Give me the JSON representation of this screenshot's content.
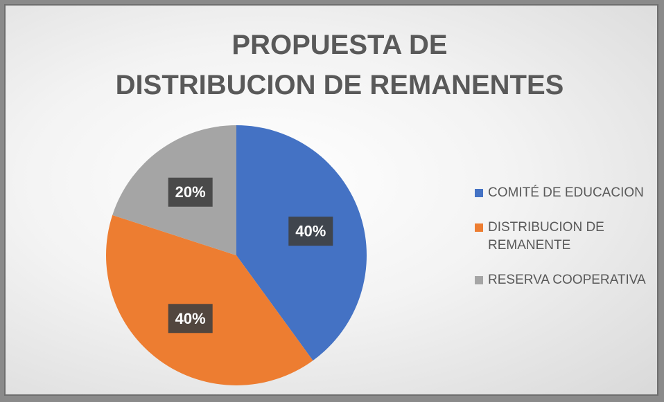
{
  "chart_data": {
    "type": "pie",
    "title": [
      "PROPUESTA DE",
      "DISTRIBUCION DE REMANENTES"
    ],
    "categories": [
      "COMITÉ DE EDUCACION",
      "DISTRIBUCION DE REMANENTE",
      "RESERVA COOPERATIVA"
    ],
    "values": [
      40,
      40,
      20
    ],
    "value_labels": [
      "40%",
      "40%",
      "20%"
    ],
    "colors": [
      "#4472c4",
      "#ed7d31",
      "#a5a5a5"
    ],
    "legend": "right"
  }
}
